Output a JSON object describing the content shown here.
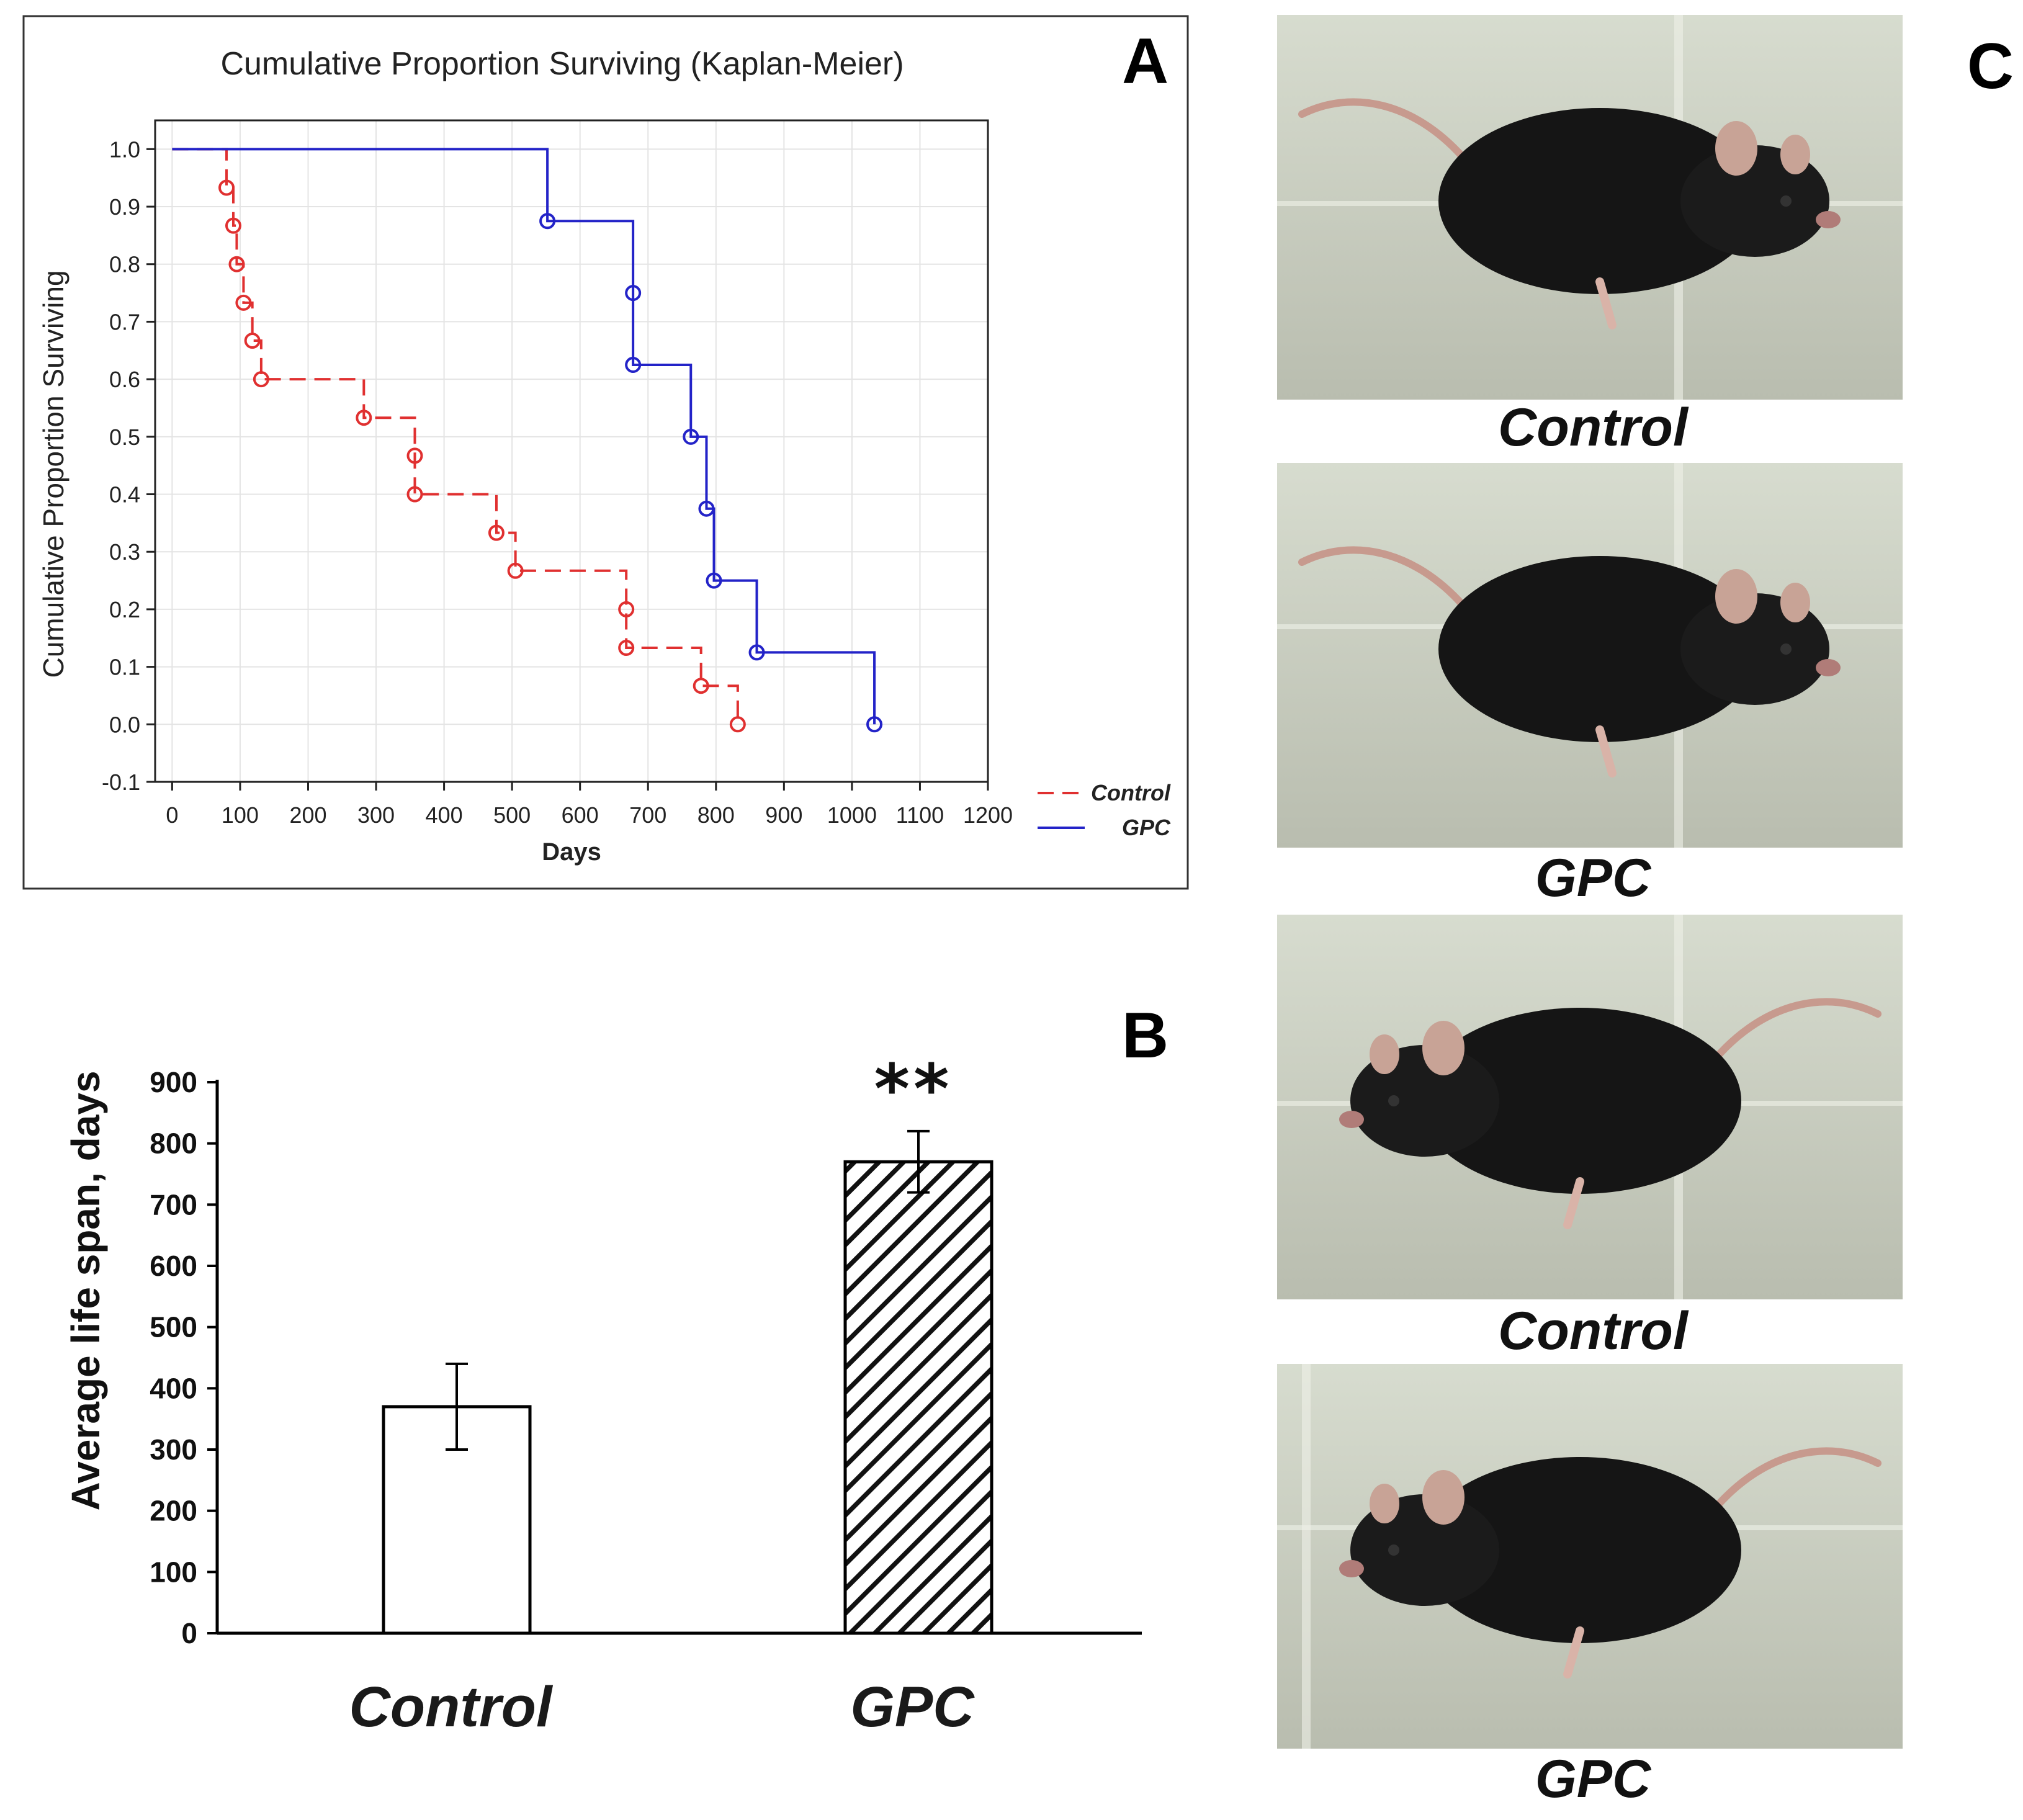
{
  "panels": {
    "a": {
      "letter": "A"
    },
    "b": {
      "letter": "B"
    },
    "c": {
      "letter": "C"
    }
  },
  "chart_data": [
    {
      "type": "line",
      "subtype": "kaplan-meier",
      "title": "Cumulative Proportion Surviving (Kaplan-Meier)",
      "xlabel": "Days",
      "ylabel": "Cumulative Proportion Surviving",
      "xlim": [
        0,
        1200
      ],
      "ylim": [
        -0.1,
        1.0
      ],
      "xticks": [
        "0",
        "100",
        "200",
        "300",
        "400",
        "500",
        "600",
        "700",
        "800",
        "900",
        "1000",
        "1100",
        "1200"
      ],
      "yticks": [
        "-0.1",
        "0.0",
        "0.1",
        "0.2",
        "0.3",
        "0.4",
        "0.5",
        "0.6",
        "0.7",
        "0.8",
        "0.9",
        "1.0"
      ],
      "grid": true,
      "legend_position": "bottom-right outside",
      "series": [
        {
          "name": "Control",
          "color": "#e03030",
          "style": "dashed",
          "events": [
            {
              "x": 80,
              "y": 0.933
            },
            {
              "x": 90,
              "y": 0.867
            },
            {
              "x": 95,
              "y": 0.8
            },
            {
              "x": 105,
              "y": 0.733
            },
            {
              "x": 118,
              "y": 0.667
            },
            {
              "x": 131,
              "y": 0.6
            },
            {
              "x": 282,
              "y": 0.533
            },
            {
              "x": 357,
              "y": 0.467
            },
            {
              "x": 357,
              "y": 0.4
            },
            {
              "x": 477,
              "y": 0.333
            },
            {
              "x": 505,
              "y": 0.267
            },
            {
              "x": 668,
              "y": 0.2
            },
            {
              "x": 668,
              "y": 0.133
            },
            {
              "x": 778,
              "y": 0.067
            },
            {
              "x": 832,
              "y": 0.0
            }
          ]
        },
        {
          "name": "GPC",
          "color": "#2323c8",
          "style": "solid",
          "events": [
            {
              "x": 552,
              "y": 0.875
            },
            {
              "x": 678,
              "y": 0.75
            },
            {
              "x": 678,
              "y": 0.625
            },
            {
              "x": 763,
              "y": 0.5
            },
            {
              "x": 786,
              "y": 0.375
            },
            {
              "x": 797,
              "y": 0.25
            },
            {
              "x": 860,
              "y": 0.125
            },
            {
              "x": 1033,
              "y": 0.0
            }
          ]
        }
      ]
    },
    {
      "type": "bar",
      "categories": [
        "Control",
        "GPC"
      ],
      "values": [
        370,
        770
      ],
      "errors": [
        70,
        50
      ],
      "patterns": [
        "none",
        "diagonal-hatch"
      ],
      "significance": [
        "",
        "**"
      ],
      "title": "",
      "xlabel": "",
      "ylabel": "Average life span, days",
      "ylim": [
        0,
        900
      ],
      "yticks": [
        "0",
        "100",
        "200",
        "300",
        "400",
        "500",
        "600",
        "700",
        "800",
        "900"
      ],
      "grid": false
    }
  ],
  "photos": [
    {
      "caption": "Control",
      "icon": "mouse-photo"
    },
    {
      "caption": "GPC",
      "icon": "mouse-photo"
    },
    {
      "caption": "Control",
      "icon": "mouse-photo"
    },
    {
      "caption": "GPC",
      "icon": "mouse-photo"
    }
  ]
}
